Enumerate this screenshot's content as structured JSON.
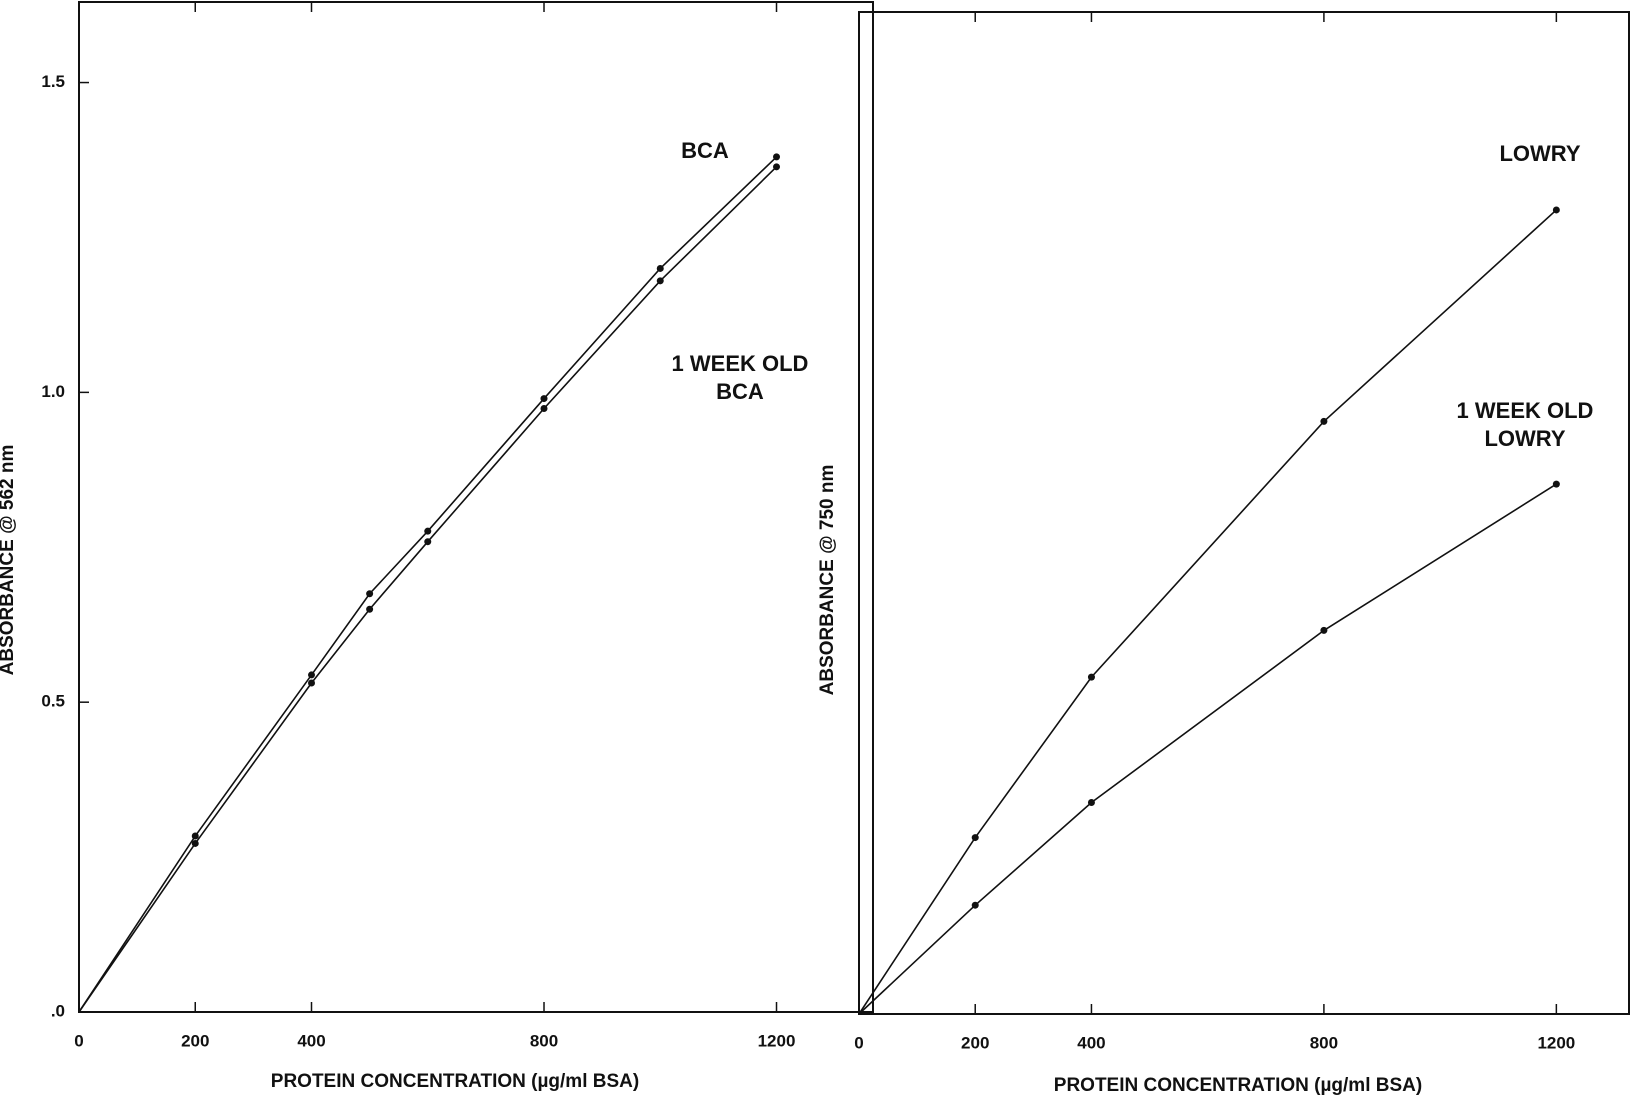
{
  "chart_data": [
    {
      "type": "line",
      "x_label": "PROTEIN CONCENTRATION (µg/ml BSA)",
      "y_label": "ABSORBANCE @ 562 nm",
      "x": [
        0,
        200,
        400,
        500,
        600,
        800,
        1000,
        1200
      ],
      "series": [
        {
          "name": "BCA",
          "color": "#111111",
          "values": [
            0,
            0.284,
            0.544,
            0.675,
            0.776,
            0.99,
            1.2,
            1.38
          ]
        },
        {
          "name": "1 WEEK OLD BCA",
          "color": "#111111",
          "values": [
            0,
            0.272,
            0.531,
            0.65,
            0.759,
            0.974,
            1.18,
            1.364
          ]
        }
      ],
      "xlim": [
        0,
        1366
      ],
      "xticks": [
        0,
        200,
        400,
        800,
        1200
      ],
      "ylim": [
        0,
        1.63
      ],
      "yticks": [
        {
          "value": 0,
          "label": ".0"
        },
        0.5,
        {
          "value": 1,
          "label": "1.0"
        },
        1.5
      ]
    },
    {
      "type": "line",
      "x_label": "PROTEIN CONCENTRATION (µg/ml BSA)",
      "y_label": "ABSORBANCE @ 750 nm",
      "x": [
        0,
        200,
        400,
        800,
        1200
      ],
      "series": [
        {
          "name": "LOWRY",
          "color": "#111111",
          "values": [
            0,
            0.287,
            0.548,
            0.964,
            1.308
          ]
        },
        {
          "name": "1 WEEK OLD LOWRY",
          "color": "#111111",
          "values": [
            0,
            0.177,
            0.344,
            0.624,
            0.862
          ]
        }
      ],
      "xlim": [
        0,
        1325
      ],
      "xticks": [
        0,
        200,
        400,
        800,
        1200
      ],
      "ylim": [
        0,
        1.63
      ]
    }
  ]
}
